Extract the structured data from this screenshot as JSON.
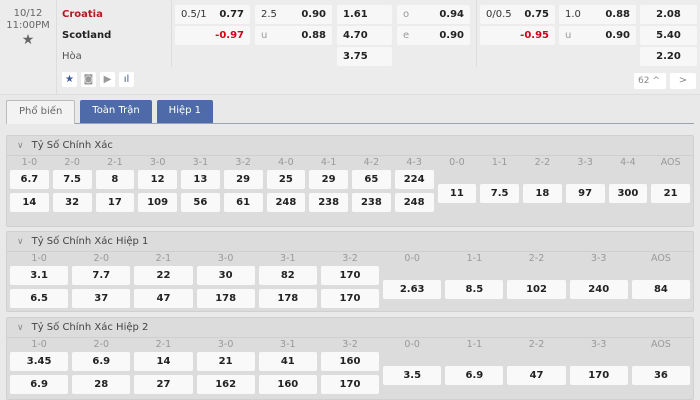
{
  "match": {
    "date": "10/12",
    "time": "11:00PM",
    "home": "Croatia",
    "away": "Scotland",
    "draw": "Hòa",
    "ft_handicap": {
      "line": "0.5/1",
      "home": "0.77",
      "away": "-0.97"
    },
    "ft_ou": {
      "line": "2.5",
      "over": "0.90",
      "u_label": "u",
      "under": "0.88"
    },
    "ft_1x2": {
      "home": "1.61",
      "away": "4.70",
      "draw": "3.75"
    },
    "ft_oe": {
      "o_label": "o",
      "odd": "0.94",
      "e_label": "e",
      "even": "0.90"
    },
    "h1_handicap": {
      "line": "0/0.5",
      "home": "0.75",
      "away": "-0.95"
    },
    "h1_ou": {
      "line": "1.0",
      "over": "0.88",
      "u_label": "u",
      "under": "0.90"
    },
    "h1_1x2": {
      "home": "2.08",
      "away": "5.40",
      "draw": "2.20"
    },
    "more_count": "62 ^",
    "next": ">"
  },
  "colors": {
    "accent": "#4f6aa8",
    "home": "#b01c22",
    "negative": "#d0021b"
  },
  "tabs": [
    "Phổ biến",
    "Toàn Trận",
    "Hiệp 1"
  ],
  "sections": [
    {
      "title": "Tỷ Số Chính Xác",
      "home_labels": [
        "1-0",
        "2-0",
        "2-1",
        "3-0",
        "3-1",
        "3-2",
        "4-0",
        "4-1",
        "4-2",
        "4-3"
      ],
      "home_row1": [
        "6.7",
        "7.5",
        "8",
        "12",
        "13",
        "29",
        "25",
        "29",
        "65",
        "224"
      ],
      "home_row2": [
        "14",
        "32",
        "17",
        "109",
        "56",
        "61",
        "248",
        "238",
        "238",
        "248"
      ],
      "other_labels": [
        "0-0",
        "1-1",
        "2-2",
        "3-3",
        "4-4",
        "AOS"
      ],
      "other_values": [
        "11",
        "7.5",
        "18",
        "97",
        "300",
        "21"
      ]
    },
    {
      "title": "Tỷ Số Chính Xác Hiệp 1",
      "home_labels": [
        "1-0",
        "2-0",
        "2-1",
        "3-0",
        "3-1",
        "3-2"
      ],
      "home_row1": [
        "3.1",
        "7.7",
        "22",
        "30",
        "82",
        "170"
      ],
      "home_row2": [
        "6.5",
        "37",
        "47",
        "178",
        "178",
        "170"
      ],
      "other_labels": [
        "0-0",
        "1-1",
        "2-2",
        "3-3",
        "AOS"
      ],
      "other_values": [
        "2.63",
        "8.5",
        "102",
        "240",
        "84"
      ]
    },
    {
      "title": "Tỷ Số Chính Xác Hiệp 2",
      "home_labels": [
        "1-0",
        "2-0",
        "2-1",
        "3-0",
        "3-1",
        "3-2"
      ],
      "home_row1": [
        "3.45",
        "6.9",
        "14",
        "21",
        "41",
        "160"
      ],
      "home_row2": [
        "6.9",
        "28",
        "27",
        "162",
        "160",
        "170"
      ],
      "other_labels": [
        "0-0",
        "1-1",
        "2-2",
        "3-3",
        "AOS"
      ],
      "other_values": [
        "3.5",
        "6.9",
        "47",
        "170",
        "36"
      ]
    }
  ]
}
